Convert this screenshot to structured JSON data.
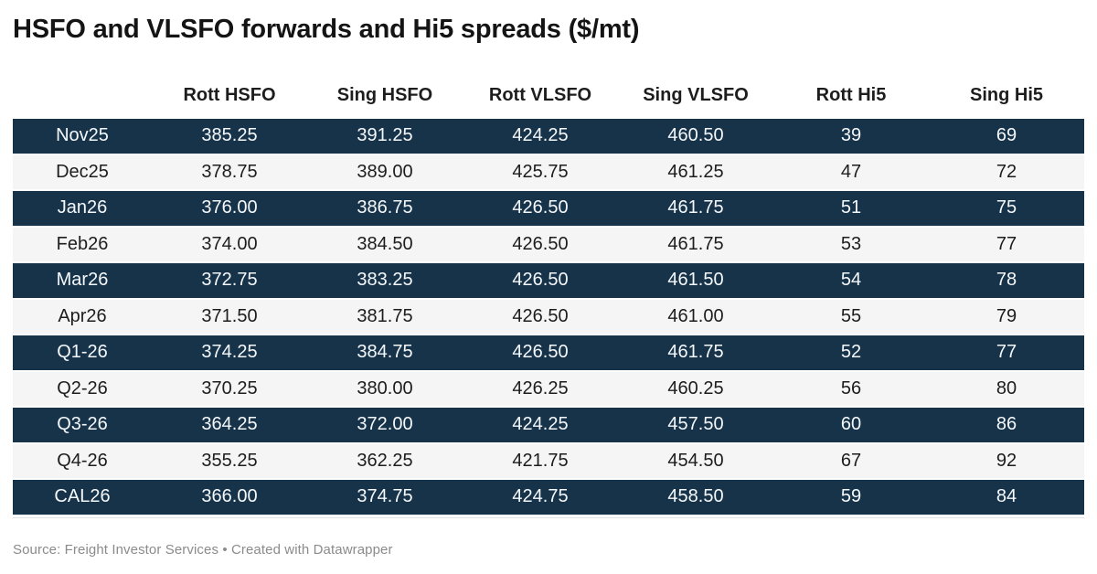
{
  "title": "HSFO and VLSFO forwards and Hi5 spreads ($/mt)",
  "table": {
    "columns": [
      "",
      "Rott HSFO",
      "Sing HSFO",
      "Rott VLSFO",
      "Sing VLSFO",
      "Rott Hi5",
      "Sing Hi5"
    ],
    "rows": [
      {
        "label": "Nov25",
        "values": [
          "385.25",
          "391.25",
          "424.25",
          "460.50",
          "39",
          "69"
        ]
      },
      {
        "label": "Dec25",
        "values": [
          "378.75",
          "389.00",
          "425.75",
          "461.25",
          "47",
          "72"
        ]
      },
      {
        "label": "Jan26",
        "values": [
          "376.00",
          "386.75",
          "426.50",
          "461.75",
          "51",
          "75"
        ]
      },
      {
        "label": "Feb26",
        "values": [
          "374.00",
          "384.50",
          "426.50",
          "461.75",
          "53",
          "77"
        ]
      },
      {
        "label": "Mar26",
        "values": [
          "372.75",
          "383.25",
          "426.50",
          "461.50",
          "54",
          "78"
        ]
      },
      {
        "label": "Apr26",
        "values": [
          "371.50",
          "381.75",
          "426.50",
          "461.00",
          "55",
          "79"
        ]
      },
      {
        "label": "Q1-26",
        "values": [
          "374.25",
          "384.75",
          "426.50",
          "461.75",
          "52",
          "77"
        ]
      },
      {
        "label": "Q2-26",
        "values": [
          "370.25",
          "380.00",
          "426.25",
          "460.25",
          "56",
          "80"
        ]
      },
      {
        "label": "Q3-26",
        "values": [
          "364.25",
          "372.00",
          "424.25",
          "457.50",
          "60",
          "86"
        ]
      },
      {
        "label": "Q4-26",
        "values": [
          "355.25",
          "362.25",
          "421.75",
          "454.50",
          "67",
          "92"
        ]
      },
      {
        "label": "CAL26",
        "values": [
          "366.00",
          "374.75",
          "424.75",
          "458.50",
          "59",
          "84"
        ]
      }
    ]
  },
  "footer": {
    "source": "Source: Freight Investor Services • Created with Datawrapper"
  },
  "colors": {
    "dark_row_bg": "#17334a",
    "dark_row_text": "#f5f8fa",
    "light_row_bg": "#f5f5f5",
    "light_row_text": "#1d1d1d",
    "title_text": "#141414",
    "footer_text": "#8b8b8b"
  },
  "chart_data": {
    "type": "table",
    "title": "HSFO and VLSFO forwards and Hi5 spreads ($/mt)",
    "categories": [
      "Nov25",
      "Dec25",
      "Jan26",
      "Feb26",
      "Mar26",
      "Apr26",
      "Q1-26",
      "Q2-26",
      "Q3-26",
      "Q4-26",
      "CAL26"
    ],
    "series": [
      {
        "name": "Rott HSFO",
        "values": [
          385.25,
          378.75,
          376.0,
          374.0,
          372.75,
          371.5,
          374.25,
          370.25,
          364.25,
          355.25,
          366.0
        ]
      },
      {
        "name": "Sing HSFO",
        "values": [
          391.25,
          389.0,
          386.75,
          384.5,
          383.25,
          381.75,
          384.75,
          380.0,
          372.0,
          362.25,
          374.75
        ]
      },
      {
        "name": "Rott VLSFO",
        "values": [
          424.25,
          425.75,
          426.5,
          426.5,
          426.5,
          426.5,
          426.5,
          426.25,
          424.25,
          421.75,
          424.75
        ]
      },
      {
        "name": "Sing VLSFO",
        "values": [
          460.5,
          461.25,
          461.75,
          461.75,
          461.5,
          461.0,
          461.75,
          460.25,
          457.5,
          454.5,
          458.5
        ]
      },
      {
        "name": "Rott Hi5",
        "values": [
          39,
          47,
          51,
          53,
          54,
          55,
          52,
          56,
          60,
          67,
          59
        ]
      },
      {
        "name": "Sing Hi5",
        "values": [
          69,
          72,
          75,
          77,
          78,
          79,
          77,
          80,
          86,
          92,
          84
        ]
      }
    ],
    "layout": {
      "striped_rows": "odd rows dark navy, even rows light gray",
      "alignment": "center",
      "grid": "off",
      "legend": "none"
    }
  }
}
